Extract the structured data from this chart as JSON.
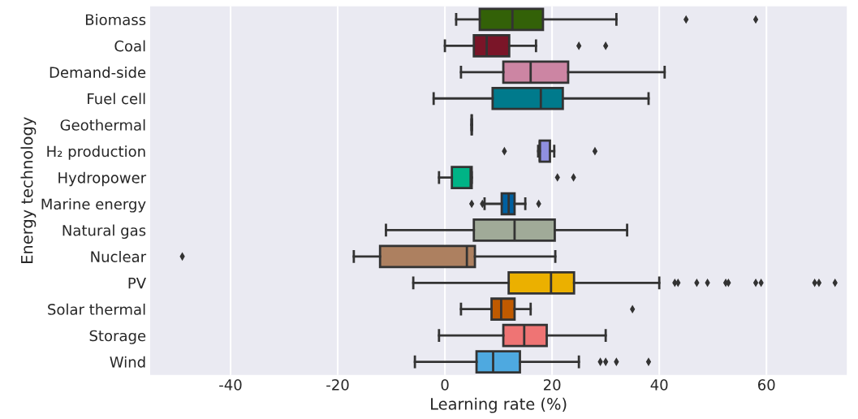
{
  "chart_data": {
    "type": "box",
    "orientation": "horizontal",
    "xlabel": "Learning rate (%)",
    "ylabel": "Energy technology",
    "grid": "x",
    "marker": "diamond",
    "xlim": [
      -55,
      75
    ],
    "xticks": [
      -40,
      -20,
      0,
      20,
      40,
      60
    ],
    "categories": [
      "Biomass",
      "Coal",
      "Demand-side",
      "Fuel cell",
      "Geothermal",
      "H₂ production",
      "Hydropower",
      "Marine energy",
      "Natural gas",
      "Nuclear",
      "PV",
      "Solar thermal",
      "Storage",
      "Wind"
    ],
    "colors": [
      "#336108",
      "#7a1528",
      "#cc85a3",
      "#007a8c",
      "#333333",
      "#8f8fe0",
      "#00b386",
      "#0060a0",
      "#a0aa98",
      "#ad8060",
      "#ebb000",
      "#c05a00",
      "#ef7474",
      "#4ea9e0"
    ],
    "boxes": [
      {
        "low": 2.1,
        "q1": 6.5,
        "median": 12.6,
        "q3": 18.3,
        "high": 32,
        "outliers": [
          45,
          58
        ]
      },
      {
        "low": 0,
        "q1": 5.4,
        "median": 7.8,
        "q3": 12,
        "high": 17,
        "outliers": [
          25,
          30
        ]
      },
      {
        "low": 3,
        "q1": 10.9,
        "median": 16,
        "q3": 23,
        "high": 41
      },
      {
        "low": -2.1,
        "q1": 8.9,
        "median": 17.9,
        "q3": 22,
        "high": 38
      },
      {
        "low": 5,
        "q1": 5,
        "median": 5,
        "q3": 5,
        "high": 5
      },
      {
        "low": 17.4,
        "q1": 17.7,
        "median": 17.7,
        "q3": 19.6,
        "high": 20.4,
        "outliers": [
          11.1,
          28
        ]
      },
      {
        "low": -1.1,
        "q1": 1.3,
        "median": 4.8,
        "q3": 5,
        "high": 5,
        "outliers": [
          21,
          24
        ]
      },
      {
        "low": 7.4,
        "q1": 10.6,
        "median": 11.9,
        "q3": 13,
        "high": 15,
        "outliers": [
          5,
          7,
          17.5
        ]
      },
      {
        "low": -11,
        "q1": 5.4,
        "median": 13,
        "q3": 20.5,
        "high": 34
      },
      {
        "low": -17,
        "q1": -12.1,
        "median": 4.1,
        "q3": 5.6,
        "high": 20.6,
        "outliers": [
          -49
        ]
      },
      {
        "low": -5.9,
        "q1": 11.9,
        "median": 19.8,
        "q3": 24.1,
        "high": 40,
        "outliers": [
          42.9,
          43.5,
          47,
          49,
          52.4,
          52.9,
          58,
          59,
          69,
          69.8,
          72.8
        ]
      },
      {
        "low": 3,
        "q1": 8.7,
        "median": 10.5,
        "q3": 13,
        "high": 16,
        "outliers": [
          35
        ]
      },
      {
        "low": -1.1,
        "q1": 10.9,
        "median": 14.8,
        "q3": 19,
        "high": 30
      },
      {
        "low": -5.6,
        "q1": 5.9,
        "median": 9,
        "q3": 14,
        "high": 25,
        "outliers": [
          29,
          30,
          32,
          38
        ]
      }
    ]
  }
}
